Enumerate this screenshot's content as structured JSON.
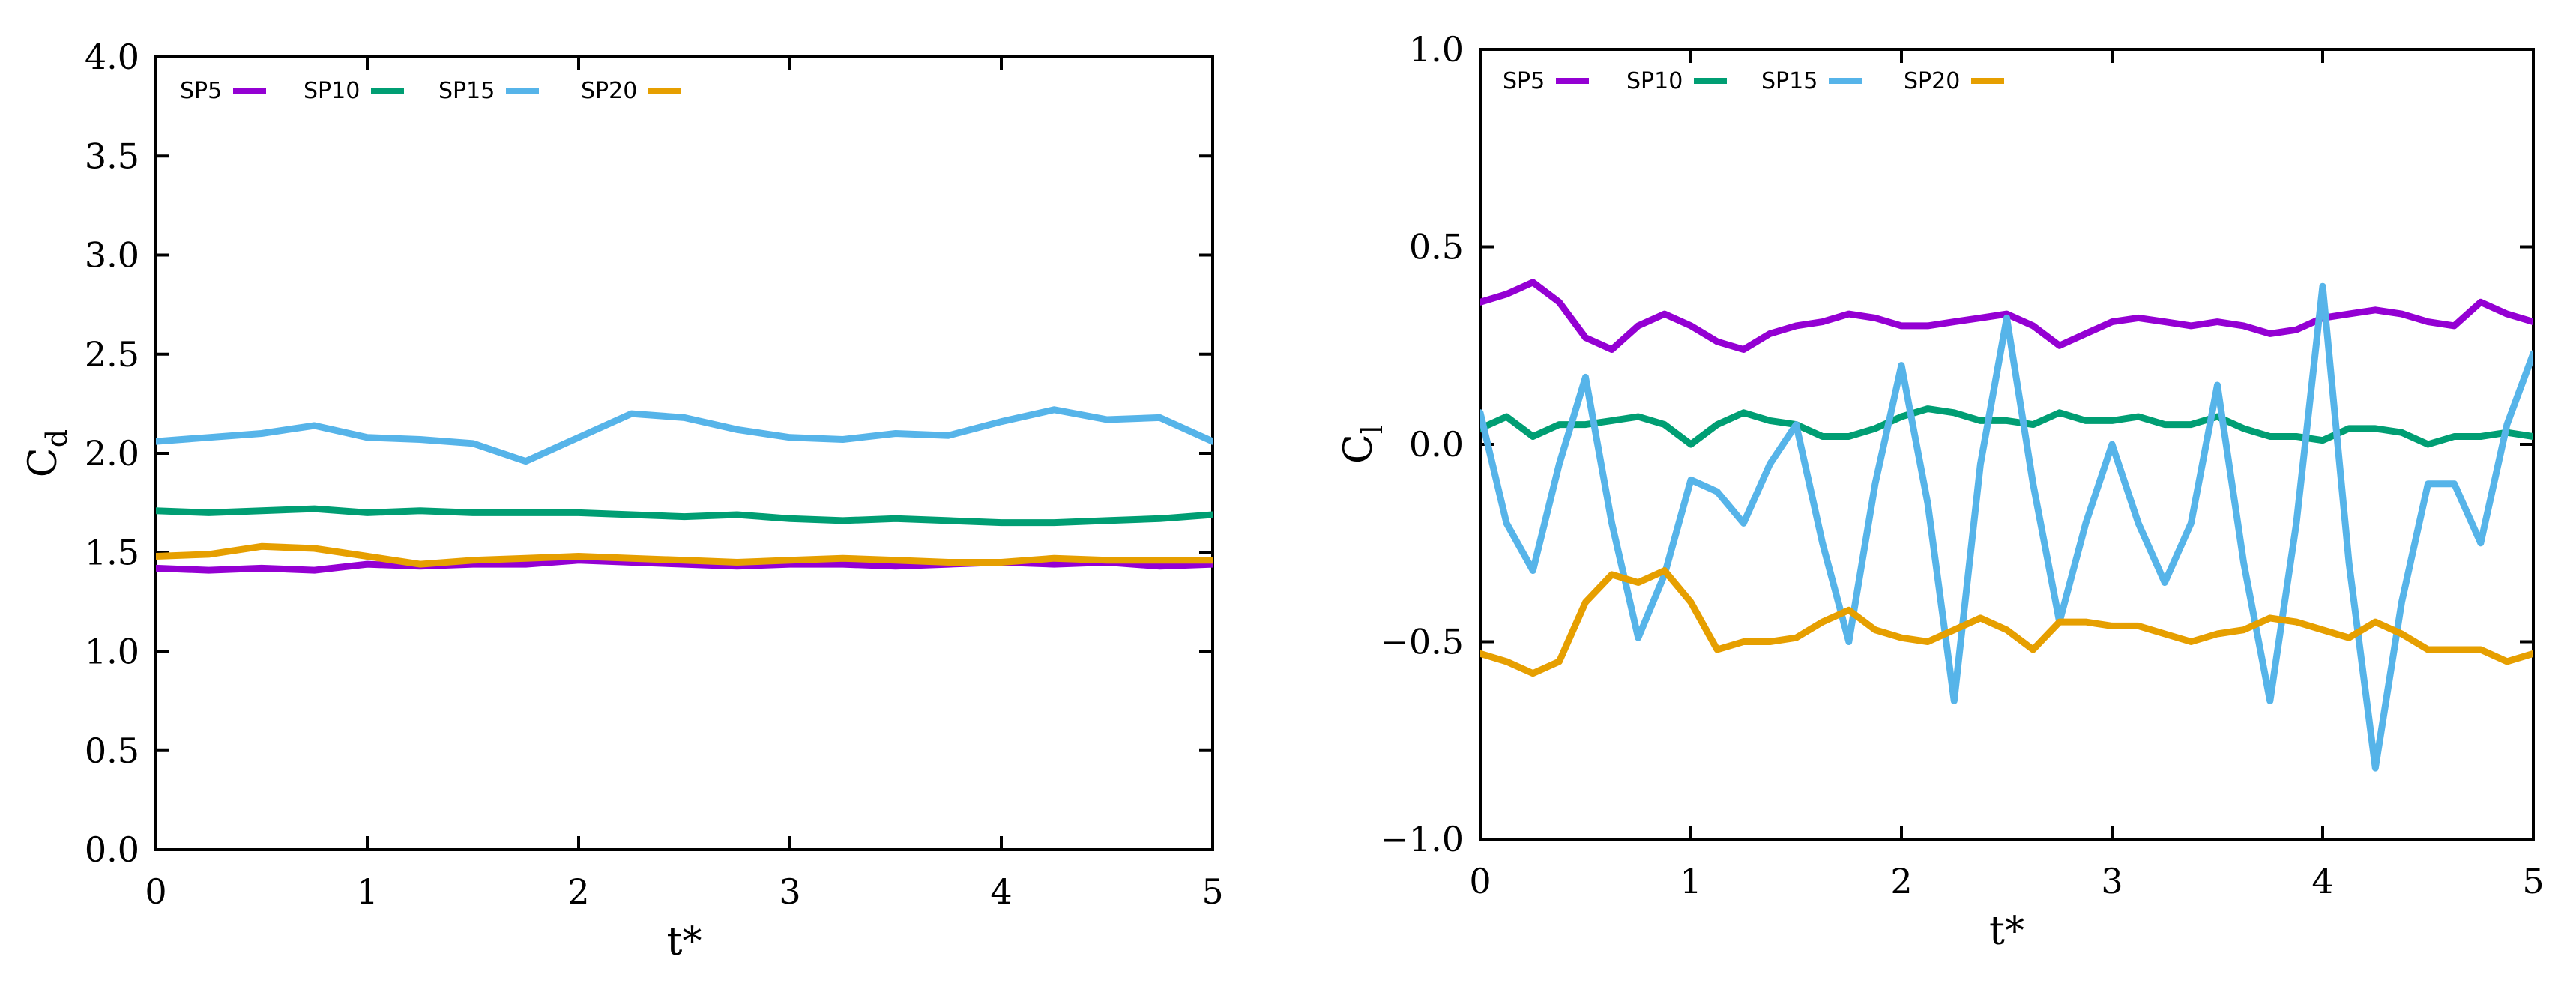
{
  "chart_data": [
    {
      "type": "line",
      "title": "",
      "xlabel": "t*",
      "ylabel": "C",
      "ylabel_sub": "d",
      "xlim": [
        0,
        5
      ],
      "ylim": [
        0,
        4.0
      ],
      "xticks": [
        "0",
        "1",
        "2",
        "3",
        "4",
        "5"
      ],
      "yticks": [
        "0.0",
        "0.5",
        "1.0",
        "1.5",
        "2.0",
        "2.5",
        "3.0",
        "3.5",
        "4.0"
      ],
      "grid": false,
      "legend_position": "top-left",
      "x": [
        0,
        0.25,
        0.5,
        0.75,
        1.0,
        1.25,
        1.5,
        1.75,
        2.0,
        2.25,
        2.5,
        2.75,
        3.0,
        3.25,
        3.5,
        3.75,
        4.0,
        4.25,
        4.5,
        4.75,
        5.0
      ],
      "series": [
        {
          "name": "SP5",
          "color": "#9400D3",
          "values": [
            1.42,
            1.41,
            1.42,
            1.41,
            1.44,
            1.43,
            1.44,
            1.44,
            1.46,
            1.45,
            1.44,
            1.43,
            1.44,
            1.44,
            1.43,
            1.44,
            1.45,
            1.44,
            1.45,
            1.43,
            1.44
          ]
        },
        {
          "name": "SP10",
          "color": "#009E73",
          "values": [
            1.71,
            1.7,
            1.71,
            1.72,
            1.7,
            1.71,
            1.7,
            1.7,
            1.7,
            1.69,
            1.68,
            1.69,
            1.67,
            1.66,
            1.67,
            1.66,
            1.65,
            1.65,
            1.66,
            1.67,
            1.69
          ]
        },
        {
          "name": "SP15",
          "color": "#56B4E9",
          "values": [
            2.06,
            2.08,
            2.1,
            2.14,
            2.08,
            2.07,
            2.05,
            1.96,
            2.08,
            2.2,
            2.18,
            2.12,
            2.08,
            2.07,
            2.1,
            2.09,
            2.16,
            2.22,
            2.17,
            2.18,
            2.06
          ]
        },
        {
          "name": "SP20",
          "color": "#E69F00",
          "values": [
            1.48,
            1.49,
            1.53,
            1.52,
            1.48,
            1.44,
            1.46,
            1.47,
            1.48,
            1.47,
            1.46,
            1.45,
            1.46,
            1.47,
            1.46,
            1.45,
            1.45,
            1.47,
            1.46,
            1.46,
            1.46
          ]
        }
      ]
    },
    {
      "type": "line",
      "title": "",
      "xlabel": "t*",
      "ylabel": "C",
      "ylabel_sub": "l",
      "xlim": [
        0,
        5
      ],
      "ylim": [
        -1.0,
        1.0
      ],
      "xticks": [
        "0",
        "1",
        "2",
        "3",
        "4",
        "5"
      ],
      "yticks": [
        "−1.0",
        "−0.5",
        "0.0",
        "0.5",
        "1.0"
      ],
      "grid": false,
      "legend_position": "top-left",
      "x": [
        0,
        0.125,
        0.25,
        0.375,
        0.5,
        0.625,
        0.75,
        0.875,
        1.0,
        1.125,
        1.25,
        1.375,
        1.5,
        1.625,
        1.75,
        1.875,
        2.0,
        2.125,
        2.25,
        2.375,
        2.5,
        2.625,
        2.75,
        2.875,
        3.0,
        3.125,
        3.25,
        3.375,
        3.5,
        3.625,
        3.75,
        3.875,
        4.0,
        4.125,
        4.25,
        4.375,
        4.5,
        4.625,
        4.75,
        4.875,
        5.0
      ],
      "series": [
        {
          "name": "SP5",
          "color": "#9400D3",
          "values": [
            0.36,
            0.38,
            0.41,
            0.36,
            0.27,
            0.24,
            0.3,
            0.33,
            0.3,
            0.26,
            0.24,
            0.28,
            0.3,
            0.31,
            0.33,
            0.32,
            0.3,
            0.3,
            0.31,
            0.32,
            0.33,
            0.3,
            0.25,
            0.28,
            0.31,
            0.32,
            0.31,
            0.3,
            0.31,
            0.3,
            0.28,
            0.29,
            0.32,
            0.33,
            0.34,
            0.33,
            0.31,
            0.3,
            0.36,
            0.33,
            0.31
          ]
        },
        {
          "name": "SP10",
          "color": "#009E73",
          "values": [
            0.04,
            0.07,
            0.02,
            0.05,
            0.05,
            0.06,
            0.07,
            0.05,
            0.0,
            0.05,
            0.08,
            0.06,
            0.05,
            0.02,
            0.02,
            0.04,
            0.07,
            0.09,
            0.08,
            0.06,
            0.06,
            0.05,
            0.08,
            0.06,
            0.06,
            0.07,
            0.05,
            0.05,
            0.07,
            0.04,
            0.02,
            0.02,
            0.01,
            0.04,
            0.04,
            0.03,
            0.0,
            0.02,
            0.02,
            0.03,
            0.02
          ]
        },
        {
          "name": "SP15",
          "color": "#56B4E9",
          "values": [
            0.08,
            -0.2,
            -0.32,
            -0.05,
            0.17,
            -0.2,
            -0.49,
            -0.33,
            -0.09,
            -0.12,
            -0.2,
            -0.05,
            0.05,
            -0.25,
            -0.5,
            -0.1,
            0.2,
            -0.15,
            -0.65,
            -0.05,
            0.32,
            -0.1,
            -0.45,
            -0.2,
            0.0,
            -0.2,
            -0.35,
            -0.2,
            0.15,
            -0.3,
            -0.65,
            -0.2,
            0.4,
            -0.3,
            -0.82,
            -0.4,
            -0.1,
            -0.1,
            -0.25,
            0.05,
            0.23
          ]
        },
        {
          "name": "SP20",
          "color": "#E69F00",
          "values": [
            -0.53,
            -0.55,
            -0.58,
            -0.55,
            -0.4,
            -0.33,
            -0.35,
            -0.32,
            -0.4,
            -0.52,
            -0.5,
            -0.5,
            -0.49,
            -0.45,
            -0.42,
            -0.47,
            -0.49,
            -0.5,
            -0.47,
            -0.44,
            -0.47,
            -0.52,
            -0.45,
            -0.45,
            -0.46,
            -0.46,
            -0.48,
            -0.5,
            -0.48,
            -0.47,
            -0.44,
            -0.45,
            -0.47,
            -0.49,
            -0.45,
            -0.48,
            -0.52,
            -0.52,
            -0.52,
            -0.55,
            -0.53
          ]
        }
      ]
    }
  ]
}
